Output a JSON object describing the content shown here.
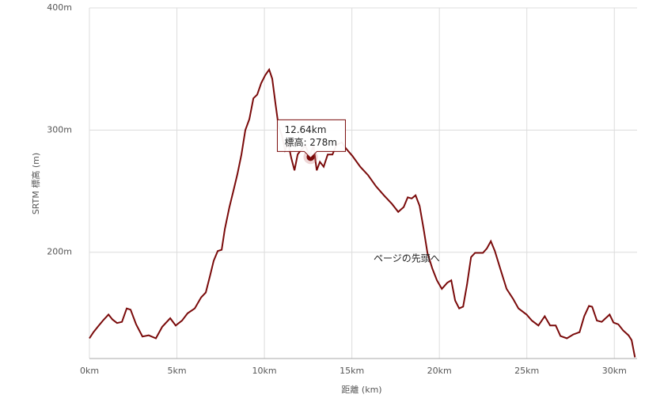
{
  "chart_data": {
    "type": "line",
    "ylabel": "SRTM 標高 (m)",
    "xlabel": "距離 (km)",
    "annotation": "ページの先頭へ",
    "xlim": [
      0,
      31.3
    ],
    "ylim": [
      113,
      400
    ],
    "xticks": [
      {
        "value": 0,
        "label": "0km"
      },
      {
        "value": 5,
        "label": "5km"
      },
      {
        "value": 10,
        "label": "10km"
      },
      {
        "value": 15,
        "label": "15km"
      },
      {
        "value": 20,
        "label": "20km"
      },
      {
        "value": 25,
        "label": "25km"
      },
      {
        "value": 30,
        "label": "30km"
      }
    ],
    "yticks": [
      {
        "value": 200,
        "label": "200m"
      },
      {
        "value": 300,
        "label": "300m"
      },
      {
        "value": 400,
        "label": "400m"
      }
    ],
    "grid": true,
    "highlight": {
      "x": 12.64,
      "y": 278,
      "x_label": "12.64km",
      "y_label": "標高: 278m"
    },
    "series": [
      {
        "name": "SRTM 標高",
        "color": "#7a0a0a",
        "x": [
          0,
          0.23,
          0.54,
          0.77,
          1.09,
          1.31,
          1.58,
          1.86,
          2.13,
          2.35,
          2.67,
          3.03,
          3.39,
          3.8,
          4.16,
          4.62,
          4.93,
          5.29,
          5.61,
          6.02,
          6.38,
          6.65,
          6.88,
          7.1,
          7.33,
          7.56,
          7.74,
          8.0,
          8.24,
          8.46,
          8.69,
          8.91,
          9.14,
          9.37,
          9.59,
          9.82,
          10.05,
          10.27,
          10.45,
          10.63,
          10.81,
          10.99,
          11.18,
          11.36,
          11.54,
          11.72,
          11.9,
          12.08,
          12.35,
          12.58,
          12.81,
          12.99,
          13.17,
          13.39,
          13.62,
          13.89,
          14.12,
          14.43,
          14.66,
          15.02,
          15.48,
          15.93,
          16.38,
          16.83,
          17.29,
          17.65,
          17.96,
          18.19,
          18.42,
          18.64,
          18.87,
          19.1,
          19.32,
          19.6,
          19.86,
          20.14,
          20.45,
          20.68,
          20.9,
          21.13,
          21.36,
          21.58,
          21.81,
          22.04,
          22.49,
          22.71,
          22.94,
          23.17,
          23.48,
          23.84,
          24.21,
          24.52,
          24.98,
          25.29,
          25.66,
          26.02,
          26.33,
          26.65,
          26.92,
          27.29,
          27.65,
          28.01,
          28.28,
          28.55,
          28.73,
          29.0,
          29.28,
          29.73,
          29.95,
          30.23,
          30.5,
          30.81,
          30.99,
          31.18
        ],
        "values": [
          129.5,
          134.6,
          140,
          144,
          149,
          145,
          142,
          143,
          154,
          153,
          141,
          131,
          132,
          129.5,
          139,
          146,
          140,
          144,
          150,
          154,
          163,
          167,
          180,
          193,
          201,
          202,
          219,
          237,
          251,
          264,
          280,
          300,
          309,
          326,
          329,
          338.5,
          345,
          349.5,
          342,
          322,
          303,
          296,
          283.5,
          289,
          277,
          267,
          280,
          283.5,
          287,
          279,
          287,
          267,
          274,
          270,
          280,
          280,
          288,
          290,
          285,
          279,
          270,
          263,
          254,
          246.6,
          239.5,
          233,
          237,
          245,
          244,
          246.6,
          238,
          219,
          199.5,
          186.6,
          177,
          170,
          175,
          177,
          160.5,
          154,
          155.5,
          173.5,
          196,
          199.5,
          199.5,
          203,
          209,
          201,
          186.6,
          170,
          162,
          154,
          149,
          144,
          140,
          147.6,
          140,
          140,
          131.4,
          129.5,
          132.7,
          134.6,
          147.6,
          156,
          155.4,
          144,
          143,
          149,
          142.4,
          141,
          136,
          132,
          128,
          114
        ]
      }
    ]
  }
}
